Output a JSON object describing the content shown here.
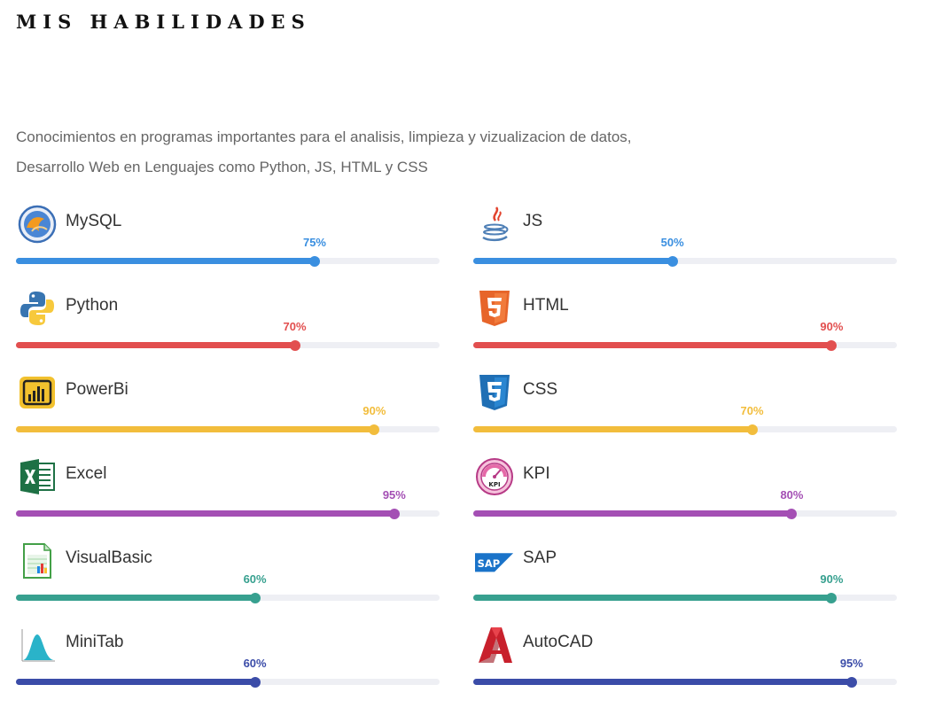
{
  "header": {
    "title": "MIS HABILIDADES"
  },
  "intro": {
    "line1": "Conocimientos en programas importantes para el analisis, limpieza y vizualizacion de datos,",
    "line2": "Desarrollo Web en Lenguajes como Python, JS, HTML y CSS"
  },
  "colors": {
    "blue": "#3a8fe0",
    "red": "#e24f4f",
    "yellow": "#f2bd3c",
    "purple": "#a44fb4",
    "teal": "#37a08f",
    "indigo": "#3b4ca8",
    "track": "#eeeff4"
  },
  "skills": [
    {
      "name": "MySQL",
      "percent_label": "75%",
      "value": 75,
      "color": "#3a8fe0",
      "icon": "mysql-icon"
    },
    {
      "name": "JS",
      "percent_label": "50%",
      "value": 50,
      "color": "#3a8fe0",
      "icon": "java-icon"
    },
    {
      "name": "Python",
      "percent_label": "70%",
      "value": 70,
      "color": "#e24f4f",
      "icon": "python-icon"
    },
    {
      "name": "HTML",
      "percent_label": "90%",
      "value": 90,
      "color": "#e24f4f",
      "icon": "html5-icon"
    },
    {
      "name": "PowerBi",
      "percent_label": "90%",
      "value": 90,
      "color": "#f2bd3c",
      "icon": "powerbi-icon"
    },
    {
      "name": "CSS",
      "percent_label": "70%",
      "value": 70,
      "color": "#f2bd3c",
      "icon": "css3-icon"
    },
    {
      "name": "Excel",
      "percent_label": "95%",
      "value": 95,
      "color": "#a44fb4",
      "icon": "excel-icon"
    },
    {
      "name": "KPI",
      "percent_label": "80%",
      "value": 80,
      "color": "#a44fb4",
      "icon": "kpi-gauge-icon",
      "icon_text": "KPI"
    },
    {
      "name": "VisualBasic",
      "percent_label": "60%",
      "value": 60,
      "color": "#37a08f",
      "icon": "spreadsheet-chart-icon"
    },
    {
      "name": "SAP",
      "percent_label": "90%",
      "value": 90,
      "color": "#37a08f",
      "icon": "sap-logo-icon",
      "icon_text": "SAP"
    },
    {
      "name": "MiniTab",
      "percent_label": "60%",
      "value": 60,
      "color": "#3b4ca8",
      "icon": "bell-curve-icon"
    },
    {
      "name": "AutoCAD",
      "percent_label": "95%",
      "value": 95,
      "color": "#3b4ca8",
      "icon": "autocad-icon"
    }
  ]
}
